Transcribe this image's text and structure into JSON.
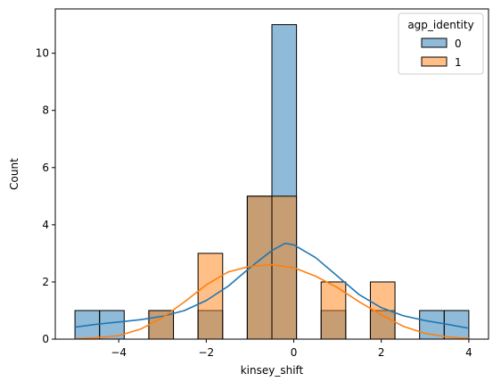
{
  "chart_data": {
    "type": "bar",
    "title": "",
    "xlabel": "kinsey_shift",
    "ylabel": "Count",
    "xlim": [
      -5.45,
      4.45
    ],
    "ylim": [
      0,
      11.55
    ],
    "xticks": [
      -4,
      -2,
      0,
      2,
      4
    ],
    "xtick_labels": [
      "−4",
      "−2",
      "0",
      "2",
      "4"
    ],
    "yticks": [
      0,
      2,
      4,
      6,
      8,
      10
    ],
    "ytick_labels": [
      "0",
      "2",
      "4",
      "6",
      "8",
      "10"
    ],
    "grid": false,
    "legend": {
      "title": "agp_identity",
      "placement": "top-right"
    },
    "bin_edges": [
      -5,
      -4.4375,
      -3.875,
      -3.3125,
      -2.75,
      -2.1875,
      -1.625,
      -1.0625,
      -0.5,
      0.0625,
      0.625,
      1.1875,
      1.75,
      2.3125,
      2.875,
      3.4375,
      4
    ],
    "series": [
      {
        "name": "0",
        "color": "#1f77b4",
        "counts": [
          1,
          1,
          0,
          1,
          0,
          1,
          0,
          5,
          11,
          0,
          1,
          0,
          1,
          0,
          1,
          1
        ],
        "kde": [
          [
            -5,
            0.42
          ],
          [
            -4.5,
            0.52
          ],
          [
            -4,
            0.6
          ],
          [
            -3.5,
            0.68
          ],
          [
            -3,
            0.8
          ],
          [
            -2.5,
            1.0
          ],
          [
            -2,
            1.35
          ],
          [
            -1.5,
            1.85
          ],
          [
            -1,
            2.5
          ],
          [
            -0.5,
            3.1
          ],
          [
            -0.2,
            3.35
          ],
          [
            0,
            3.3
          ],
          [
            0.5,
            2.85
          ],
          [
            1,
            2.2
          ],
          [
            1.5,
            1.55
          ],
          [
            2,
            1.1
          ],
          [
            2.5,
            0.82
          ],
          [
            3,
            0.65
          ],
          [
            3.5,
            0.52
          ],
          [
            4,
            0.38
          ]
        ]
      },
      {
        "name": "1",
        "color": "#ff7f0e",
        "counts": [
          0,
          0,
          0,
          1,
          0,
          3,
          0,
          5,
          5,
          0,
          2,
          0,
          2,
          0,
          0,
          0
        ],
        "kde": [
          [
            -5,
            0.01
          ],
          [
            -4.5,
            0.05
          ],
          [
            -4,
            0.12
          ],
          [
            -3.5,
            0.35
          ],
          [
            -3,
            0.75
          ],
          [
            -2.5,
            1.3
          ],
          [
            -2,
            1.9
          ],
          [
            -1.5,
            2.35
          ],
          [
            -1,
            2.55
          ],
          [
            -0.5,
            2.6
          ],
          [
            0,
            2.5
          ],
          [
            0.5,
            2.2
          ],
          [
            1,
            1.8
          ],
          [
            1.5,
            1.3
          ],
          [
            2,
            0.85
          ],
          [
            2.5,
            0.45
          ],
          [
            3,
            0.2
          ],
          [
            3.5,
            0.08
          ],
          [
            4,
            0.02
          ]
        ]
      }
    ]
  }
}
